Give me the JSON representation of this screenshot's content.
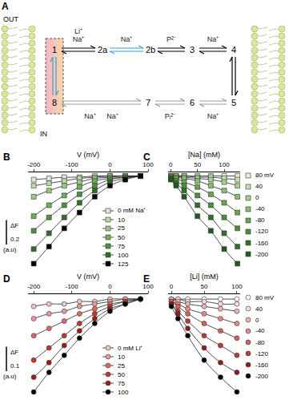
{
  "diagram": {
    "panel_label": "A",
    "out_label": "OUT",
    "in_label": "IN",
    "states": [
      "1",
      "2a",
      "2b",
      "3",
      "4",
      "5",
      "6",
      "7",
      "8"
    ],
    "transitions": [
      {
        "from": "1",
        "to": "2a",
        "labels": [
          "Li⁺",
          "Na⁺"
        ],
        "color": "#000000"
      },
      {
        "from": "2a",
        "to": "2b",
        "labels": [
          "Na⁺"
        ],
        "color": "#3a9fd6"
      },
      {
        "from": "2b",
        "to": "3",
        "labels": [
          "P²⁻"
        ],
        "color": "#000000"
      },
      {
        "from": "3",
        "to": "4",
        "labels": [
          "Na⁺"
        ],
        "color": "#000000"
      },
      {
        "from": "4",
        "to": "5",
        "color": "#000000"
      },
      {
        "from": "5",
        "to": "6",
        "labels": [
          "Na⁺"
        ],
        "color": "#9a9a9a"
      },
      {
        "from": "6",
        "to": "7",
        "labels": [
          "Pᵢ²⁻"
        ],
        "color": "#9a9a9a"
      },
      {
        "from": "7",
        "to": "8",
        "labels": [
          "Na⁺",
          "Na⁺"
        ],
        "color": "#9a9a9a"
      },
      {
        "from": "8",
        "to": "1",
        "color": "#3a9fd6"
      }
    ]
  },
  "chart_data": [
    {
      "type": "line",
      "panel_label": "B",
      "x_label": "V (mV)",
      "x": [
        -200,
        -160,
        -120,
        -80,
        -40,
        0,
        40,
        80
      ],
      "xlim": [
        -215,
        100
      ],
      "xticks": [
        -200,
        -100,
        0,
        100
      ],
      "ylim": [
        -0.76,
        0.03
      ],
      "tick_labels": "x",
      "grid": false,
      "legend": "lower right",
      "marker": "square",
      "line_style": "solid",
      "scale_bar": {
        "label": "ΔF",
        "value": 0.2,
        "unit": "(a.u)"
      },
      "series": [
        {
          "name": "0 mM Na⁺",
          "color": "#d9ead3",
          "values": [
            -0.03,
            -0.02,
            -0.01,
            -0.01,
            0,
            0,
            0,
            0
          ]
        },
        {
          "name": "10",
          "color": "#b9dba6",
          "values": [
            -0.08,
            -0.06,
            -0.04,
            -0.02,
            -0.01,
            0,
            0,
            0
          ]
        },
        {
          "name": "25",
          "color": "#98c97f",
          "values": [
            -0.17,
            -0.12,
            -0.08,
            -0.05,
            -0.02,
            -0.01,
            0,
            0
          ]
        },
        {
          "name": "50",
          "color": "#6fae57",
          "values": [
            -0.33,
            -0.24,
            -0.16,
            -0.09,
            -0.04,
            -0.02,
            -0.01,
            0
          ]
        },
        {
          "name": "75",
          "color": "#4b913a",
          "values": [
            -0.45,
            -0.34,
            -0.24,
            -0.15,
            -0.08,
            -0.03,
            -0.01,
            0
          ]
        },
        {
          "name": "100",
          "color": "#2f7028",
          "values": [
            -0.6,
            -0.47,
            -0.34,
            -0.22,
            -0.12,
            -0.05,
            -0.02,
            0
          ]
        },
        {
          "name": "125",
          "color": "#000000",
          "values": [
            -0.72,
            -0.58,
            -0.43,
            -0.3,
            -0.17,
            -0.08,
            -0.03,
            0
          ]
        }
      ]
    },
    {
      "type": "line",
      "panel_label": "C",
      "x_label": "[Na] (mM)",
      "x": [
        0,
        10,
        25,
        50,
        75,
        100,
        125
      ],
      "xlim": [
        -5,
        130
      ],
      "xticks": [
        0,
        50,
        100
      ],
      "ylim": [
        -0.76,
        0.03
      ],
      "tick_labels": "x",
      "grid": false,
      "legend": "right",
      "marker": "square",
      "line_style": "solid",
      "series": [
        {
          "name": "80 mV",
          "color": "#e0efd9",
          "values": [
            0,
            0,
            0,
            0,
            0,
            0,
            0
          ]
        },
        {
          "name": "40",
          "color": "#c3e2b3",
          "values": [
            0,
            0,
            0,
            -0.01,
            -0.01,
            -0.02,
            -0.03
          ]
        },
        {
          "name": "0",
          "color": "#a5d18f",
          "values": [
            0,
            0,
            -0.01,
            -0.02,
            -0.03,
            -0.05,
            -0.08
          ]
        },
        {
          "name": "-40",
          "color": "#86bf6d",
          "values": [
            0,
            -0.01,
            -0.02,
            -0.04,
            -0.08,
            -0.12,
            -0.17
          ]
        },
        {
          "name": "-80",
          "color": "#66a84f",
          "values": [
            -0.01,
            -0.02,
            -0.05,
            -0.09,
            -0.15,
            -0.22,
            -0.3
          ]
        },
        {
          "name": "-120",
          "color": "#4a8f3a",
          "values": [
            -0.01,
            -0.04,
            -0.08,
            -0.16,
            -0.24,
            -0.34,
            -0.43
          ]
        },
        {
          "name": "-160",
          "color": "#2f7327",
          "values": [
            -0.02,
            -0.06,
            -0.12,
            -0.24,
            -0.34,
            -0.47,
            -0.58
          ]
        },
        {
          "name": "-200",
          "color": "#1e5c1e",
          "values": [
            -0.03,
            -0.08,
            -0.17,
            -0.33,
            -0.45,
            -0.6,
            -0.72
          ]
        }
      ]
    },
    {
      "type": "line",
      "panel_label": "D",
      "x_label": "V (mV)",
      "x": [
        -200,
        -160,
        -120,
        -80,
        -40,
        0,
        40,
        80
      ],
      "xlim": [
        -215,
        100
      ],
      "xticks": [
        -200,
        -100,
        0,
        100
      ],
      "ylim": [
        -0.4,
        0.02
      ],
      "tick_labels": "x",
      "grid": false,
      "legend": "lower right",
      "marker": "circle",
      "line_style": "solid",
      "scale_bar": {
        "label": "ΔF",
        "value": 0.1,
        "unit": "(a.u)"
      },
      "series": [
        {
          "name": "0 mM Li⁺",
          "color": "#f2c4c4",
          "values": [
            -0.03,
            -0.02,
            -0.02,
            -0.01,
            -0.01,
            0,
            0,
            0
          ]
        },
        {
          "name": "10",
          "color": "#e89a9a",
          "values": [
            -0.08,
            -0.06,
            -0.05,
            -0.03,
            -0.02,
            -0.01,
            0,
            0
          ]
        },
        {
          "name": "25",
          "color": "#d96b6b",
          "values": [
            -0.15,
            -0.12,
            -0.09,
            -0.06,
            -0.04,
            -0.02,
            -0.01,
            0
          ]
        },
        {
          "name": "50",
          "color": "#c0392b",
          "values": [
            -0.25,
            -0.2,
            -0.15,
            -0.1,
            -0.06,
            -0.03,
            -0.01,
            0
          ]
        },
        {
          "name": "75",
          "color": "#9b1c1c",
          "values": [
            -0.32,
            -0.26,
            -0.19,
            -0.13,
            -0.08,
            -0.04,
            -0.02,
            0
          ]
        },
        {
          "name": "100",
          "color": "#000000",
          "values": [
            -0.38,
            -0.3,
            -0.23,
            -0.16,
            -0.1,
            -0.05,
            -0.02,
            0
          ]
        }
      ]
    },
    {
      "type": "line",
      "panel_label": "E",
      "x_label": "[Li] (mM)",
      "x": [
        0,
        10,
        25,
        50,
        75,
        100
      ],
      "xlim": [
        -5,
        105
      ],
      "xticks": [
        0,
        50,
        100
      ],
      "ylim": [
        -0.4,
        0.02
      ],
      "tick_labels": "x",
      "grid": false,
      "legend": "right",
      "marker": "circle",
      "line_style": "solid",
      "series": [
        {
          "name": "80 mV",
          "color": "#ffffff",
          "values": [
            0,
            0,
            0,
            0,
            0,
            0
          ]
        },
        {
          "name": "40",
          "color": "#f9dada",
          "values": [
            0,
            0,
            -0.01,
            -0.01,
            -0.02,
            -0.02
          ]
        },
        {
          "name": "0",
          "color": "#f0b3b3",
          "values": [
            0,
            -0.01,
            -0.02,
            -0.03,
            -0.04,
            -0.05
          ]
        },
        {
          "name": "-40",
          "color": "#e58a8a",
          "values": [
            -0.01,
            -0.02,
            -0.04,
            -0.06,
            -0.08,
            -0.1
          ]
        },
        {
          "name": "-80",
          "color": "#d45f5f",
          "values": [
            -0.01,
            -0.03,
            -0.06,
            -0.1,
            -0.13,
            -0.16
          ]
        },
        {
          "name": "-120",
          "color": "#b83a3a",
          "values": [
            -0.02,
            -0.05,
            -0.09,
            -0.15,
            -0.19,
            -0.23
          ]
        },
        {
          "name": "-160",
          "color": "#8e1e1e",
          "values": [
            -0.02,
            -0.06,
            -0.12,
            -0.2,
            -0.26,
            -0.3
          ]
        },
        {
          "name": "-200",
          "color": "#000000",
          "values": [
            -0.03,
            -0.08,
            -0.15,
            -0.25,
            -0.32,
            -0.38
          ]
        }
      ]
    }
  ]
}
